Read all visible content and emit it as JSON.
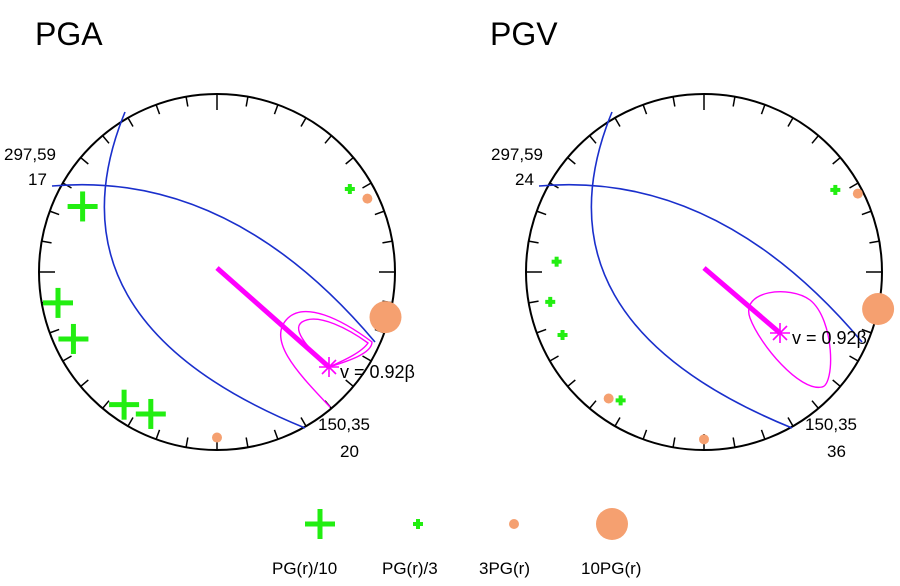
{
  "panels": [
    {
      "title": "PGA",
      "upper_label_line1": "297,59",
      "upper_label_line2": "17",
      "lower_label_line1": "150,35",
      "lower_label_line2": "20",
      "velocity_label": "v = 0.92β",
      "stations": [
        {
          "kind": "plus",
          "class": "PG(r)/10",
          "az": 296,
          "r": 0.84
        },
        {
          "kind": "plus",
          "class": "PG(r)/10",
          "az": 259,
          "r": 0.91
        },
        {
          "kind": "plus",
          "class": "PG(r)/10",
          "az": 245,
          "r": 0.89
        },
        {
          "kind": "plus",
          "class": "PG(r)/10",
          "az": 215,
          "r": 0.91
        },
        {
          "kind": "plus",
          "class": "PG(r)/10",
          "az": 205,
          "r": 0.88
        },
        {
          "kind": "plus",
          "class": "PG(r)/3",
          "az": 58,
          "r": 0.88
        },
        {
          "kind": "dot",
          "class": "3PG(r)",
          "az": 64,
          "r": 0.94
        },
        {
          "kind": "dot",
          "class": "10PG(r)",
          "az": 105,
          "r": 0.98
        },
        {
          "kind": "dot",
          "class": "3PG(r)",
          "az": 180,
          "r": 0.93
        }
      ]
    },
    {
      "title": "PGV",
      "upper_label_line1": "297,59",
      "upper_label_line2": "24",
      "lower_label_line1": "150,35",
      "lower_label_line2": "36",
      "velocity_label": "v = 0.92β",
      "stations": [
        {
          "kind": "plus",
          "class": "PG(r)/3",
          "az": 58,
          "r": 0.87
        },
        {
          "kind": "dot",
          "class": "3PG(r)",
          "az": 63,
          "r": 0.97
        },
        {
          "kind": "plus",
          "class": "PG(r)/3",
          "az": 274,
          "r": 0.83
        },
        {
          "kind": "plus",
          "class": "PG(r)/3",
          "az": 259,
          "r": 0.88
        },
        {
          "kind": "plus",
          "class": "PG(r)/3",
          "az": 246,
          "r": 0.87
        },
        {
          "kind": "plus",
          "class": "PG(r)/3",
          "az": 213,
          "r": 0.86
        },
        {
          "kind": "dot",
          "class": "3PG(r)",
          "az": 217,
          "r": 0.89
        },
        {
          "kind": "dot",
          "class": "3PG(r)",
          "az": 180,
          "r": 0.94
        },
        {
          "kind": "dot",
          "class": "10PG(r)",
          "az": 102,
          "r": 1.0
        }
      ]
    }
  ],
  "legend": [
    {
      "label": "PG(r)/10",
      "kind": "plus",
      "class": "PG(r)/10"
    },
    {
      "label": "PG(r)/3",
      "kind": "plus",
      "class": "PG(r)/3"
    },
    {
      "label": "3PG(r)",
      "kind": "dot",
      "class": "3PG(r)"
    },
    {
      "label": "10PG(r)",
      "kind": "dot",
      "class": "10PG(r)"
    }
  ],
  "colors": {
    "nodal_plane": "#1a2fcc",
    "rupture": "#ff00ff",
    "plus_marker": "#22ee11",
    "dot_marker": "#f5a070",
    "outline": "#000000"
  }
}
